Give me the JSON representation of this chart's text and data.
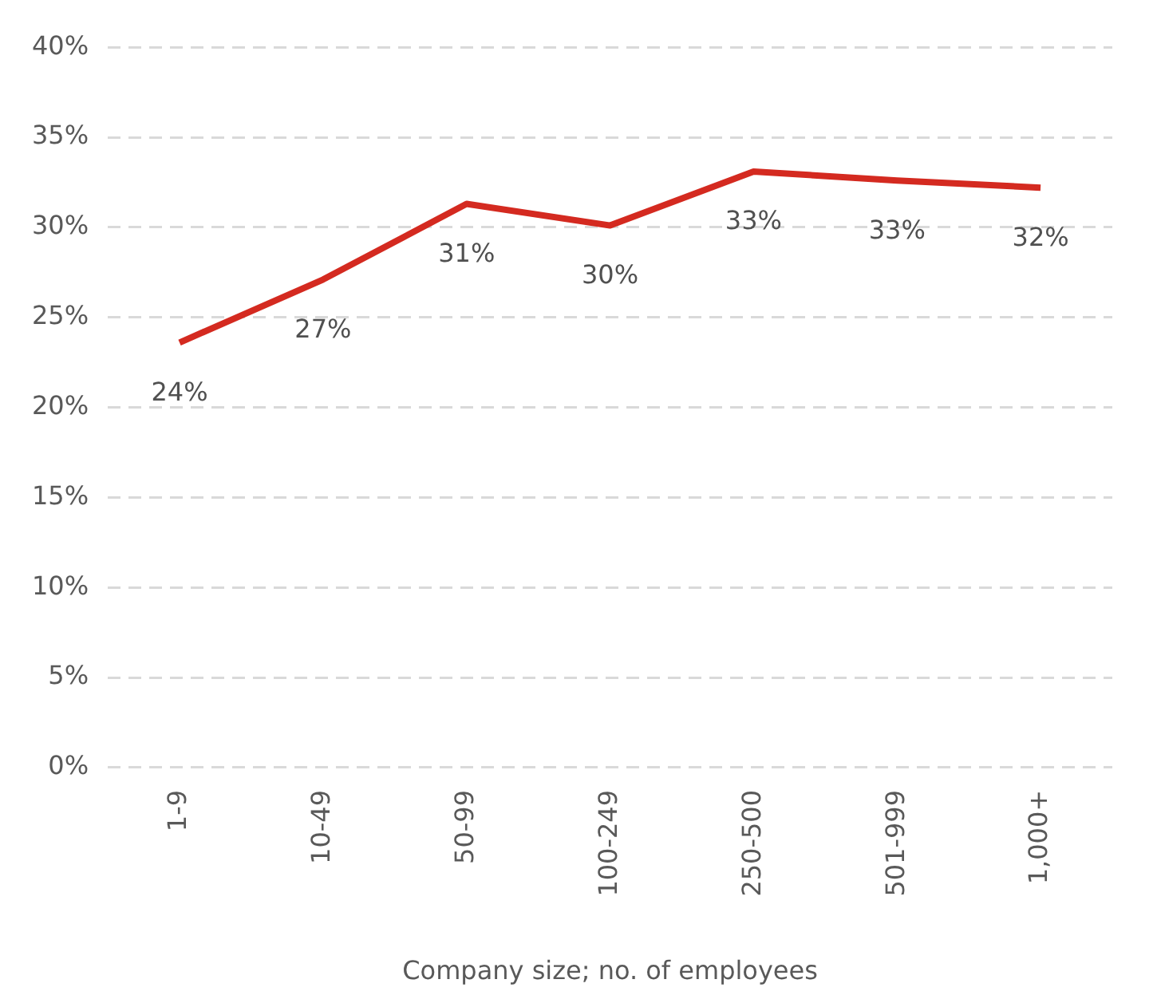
{
  "chart_data": {
    "type": "line",
    "xlabel": "Company size; no. of employees",
    "categories": [
      "1-9",
      "10-49",
      "50-99",
      "100-249",
      "250-500",
      "501-999",
      "1,000+"
    ],
    "series": [
      {
        "color": "#d42a20",
        "values": [
          23.6,
          27.1,
          31.3,
          30.1,
          33.1,
          32.6,
          32.2
        ],
        "value_labels": [
          "24%",
          "27%",
          "31%",
          "30%",
          "33%",
          "33%",
          "32%"
        ]
      }
    ],
    "ylim": [
      0,
      40
    ],
    "yticks": [
      {
        "value": 0,
        "label": "0%"
      },
      {
        "value": 5,
        "label": "5%"
      },
      {
        "value": 10,
        "label": "10%"
      },
      {
        "value": 15,
        "label": "15%"
      },
      {
        "value": 20,
        "label": "20%"
      },
      {
        "value": 25,
        "label": "25%"
      },
      {
        "value": 30,
        "label": "30%"
      },
      {
        "value": 35,
        "label": "35%"
      },
      {
        "value": 40,
        "label": "40%"
      }
    ],
    "grid": "y",
    "legend": false,
    "marker": "none",
    "line_style": "solid"
  }
}
